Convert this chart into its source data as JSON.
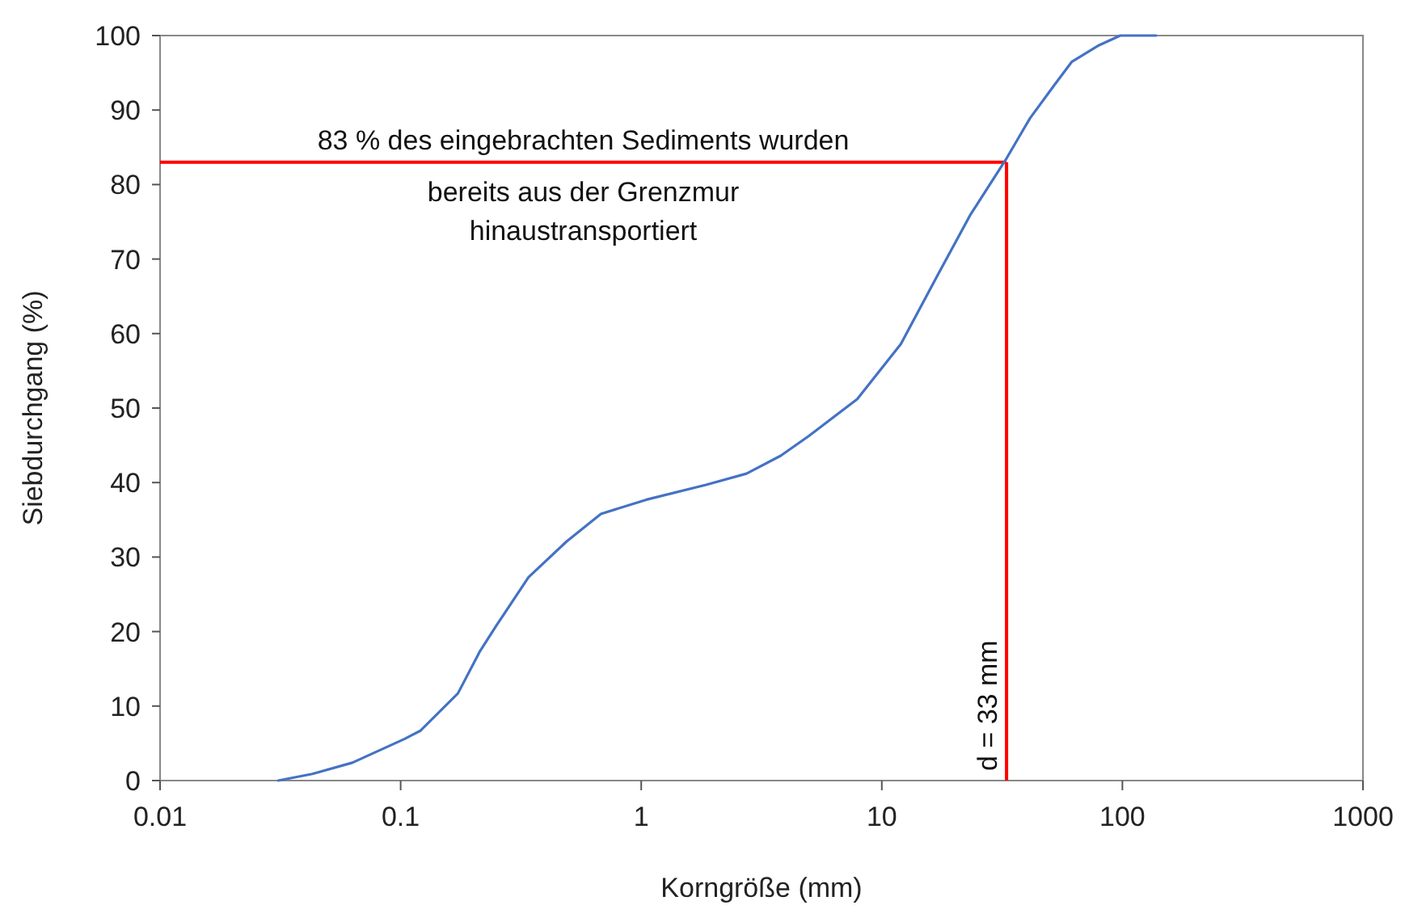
{
  "chart_data": {
    "type": "line",
    "xlabel": "Korngröße (mm)",
    "ylabel": "Siebdurchgang (%)",
    "log": "x",
    "marker": "none",
    "line_style": "solid",
    "xlim": [
      0.01,
      1000
    ],
    "xticks": [
      0.01,
      0.1,
      1,
      10,
      100,
      1000
    ],
    "ylim": [
      0,
      100
    ],
    "yticks": [
      0,
      10,
      20,
      30,
      40,
      50,
      60,
      70,
      80,
      90,
      100
    ],
    "series": [
      {
        "color": "#4472c4",
        "x": [
          0.031,
          0.043,
          0.063,
          0.104,
          0.121,
          0.173,
          0.214,
          0.25,
          0.34,
          0.49,
          0.68,
          1.05,
          1.86,
          2.74,
          3.8,
          4.95,
          7.9,
          12,
          17.1,
          23.3,
          32.7,
          41.3,
          52,
          61.7,
          80,
          98,
          138
        ],
        "values": [
          0,
          0.9,
          2.4,
          5.6,
          6.7,
          11.7,
          17.4,
          20.8,
          27.3,
          32.1,
          35.8,
          37.7,
          39.7,
          41.2,
          43.6,
          46.2,
          51.2,
          58.6,
          67.9,
          75.9,
          83.3,
          88.9,
          93.3,
          96.5,
          98.7,
          100,
          100
        ]
      }
    ],
    "ref_lines": [
      {
        "axis": "y",
        "value": 83,
        "label": "83 % des eingebrachten Sediments wurden bereits aus der Grenzmur hinaustransportiert",
        "color": "#ff0000"
      },
      {
        "axis": "x",
        "value": 33,
        "label": "d = 33 mm",
        "color": "#ff0000"
      }
    ]
  }
}
